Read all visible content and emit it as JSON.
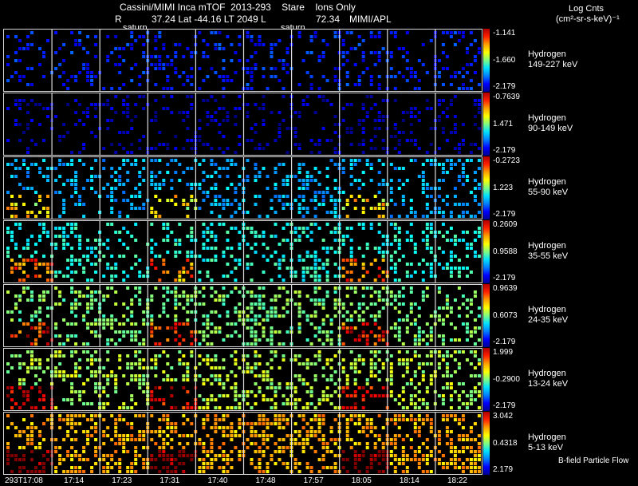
{
  "header": {
    "title": "Cassini/MIMI Inca mTOF  2013-293    Stare    Ions Only",
    "line2_r": "R",
    "line2_vals": "37.24 Lat -44.16 LT 2049 L",
    "line2_l": "72.34",
    "line2_org": "MIMI/APL",
    "saturn_left": "saturn",
    "saturn_right": "saturn",
    "units_line1": "Log Cnts",
    "units_line2": "(cm²-sr-s-keV)⁻¹"
  },
  "chart_data": {
    "type": "heatmap",
    "x_tick_labels": [
      "293T17:08",
      "17:14",
      "17:23",
      "17:31",
      "17:40",
      "17:48",
      "17:57",
      "18:05",
      "18:14",
      "18:22"
    ],
    "panels": [
      {
        "species": "Hydrogen",
        "energy": "149-227 keV",
        "cb_top": "-1.141",
        "cb_mid": "-1.660",
        "cb_bot": "-2.179",
        "level": 0.15
      },
      {
        "species": "Hydrogen",
        "energy": "90-149 keV",
        "cb_top": "-0.7639",
        "cb_mid": "1.471",
        "cb_bot": "-2.179",
        "level": 0.05
      },
      {
        "species": "Hydrogen",
        "energy": "55-90 keV",
        "cb_top": "-0.2723",
        "cb_mid": "1.223",
        "cb_bot": "-2.179",
        "level": 0.3
      },
      {
        "species": "Hydrogen",
        "energy": "35-55 keV",
        "cb_top": "0.2609",
        "cb_mid": "0.9588",
        "cb_bot": "-2.179",
        "level": 0.4
      },
      {
        "species": "Hydrogen",
        "energy": "24-35 keV",
        "cb_top": "0.9639",
        "cb_mid": "0.6073",
        "cb_bot": "-2.179",
        "level": 0.5
      },
      {
        "species": "Hydrogen",
        "energy": "13-24 keV",
        "cb_top": "1.999",
        "cb_mid": "-0.2900",
        "cb_bot": "-2.179",
        "level": 0.55
      },
      {
        "species": "Hydrogen",
        "energy": "5-13 keV",
        "cb_top": "3.042",
        "cb_mid": "0.4318",
        "cb_bot": "2.179",
        "level": 0.7
      }
    ]
  },
  "footer": {
    "bfield_note": "B-field Particle Flow"
  }
}
